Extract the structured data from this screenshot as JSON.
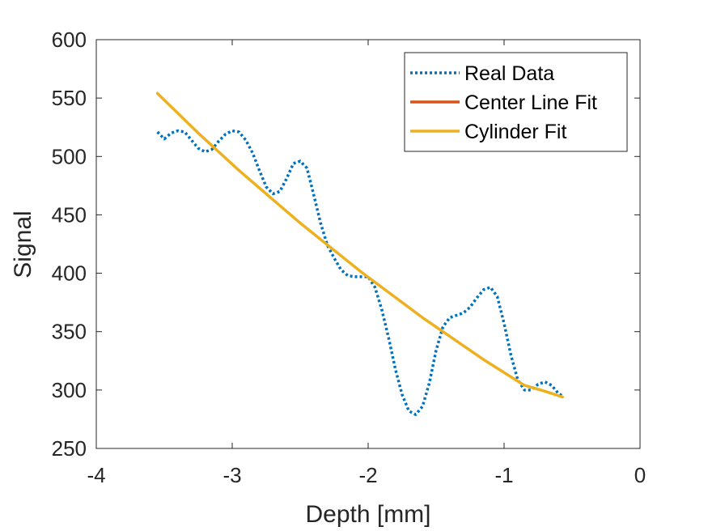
{
  "chart_data": {
    "type": "line",
    "title": "",
    "xlabel": "Depth [mm]",
    "ylabel": "Signal",
    "xlim": [
      -4,
      0
    ],
    "ylim": [
      250,
      600
    ],
    "xticks": [
      -4,
      -3,
      -2,
      -1,
      0
    ],
    "xtick_labels": [
      "-4",
      "-3",
      "-2",
      "-1",
      "0"
    ],
    "yticks": [
      250,
      300,
      350,
      400,
      450,
      500,
      550,
      600
    ],
    "ytick_labels": [
      "250",
      "300",
      "350",
      "400",
      "450",
      "500",
      "550",
      "600"
    ],
    "grid": false,
    "legend_position": "top-right",
    "series": [
      {
        "name": "Real Data",
        "color": "#0072BD",
        "style": "dotted",
        "points": [
          [
            -3.55,
            521
          ],
          [
            -3.5,
            515
          ],
          [
            -3.45,
            520
          ],
          [
            -3.4,
            522
          ],
          [
            -3.35,
            521
          ],
          [
            -3.3,
            514
          ],
          [
            -3.25,
            507
          ],
          [
            -3.2,
            504
          ],
          [
            -3.15,
            506
          ],
          [
            -3.1,
            513
          ],
          [
            -3.05,
            519
          ],
          [
            -3.0,
            522
          ],
          [
            -2.95,
            521
          ],
          [
            -2.9,
            514
          ],
          [
            -2.85,
            503
          ],
          [
            -2.8,
            488
          ],
          [
            -2.75,
            474
          ],
          [
            -2.7,
            468
          ],
          [
            -2.65,
            470
          ],
          [
            -2.6,
            481
          ],
          [
            -2.55,
            494
          ],
          [
            -2.5,
            496
          ],
          [
            -2.45,
            490
          ],
          [
            -2.4,
            467
          ],
          [
            -2.35,
            443
          ],
          [
            -2.3,
            424
          ],
          [
            -2.25,
            413
          ],
          [
            -2.2,
            403
          ],
          [
            -2.15,
            398
          ],
          [
            -2.1,
            397
          ],
          [
            -2.05,
            397
          ],
          [
            -2.0,
            397
          ],
          [
            -1.95,
            388
          ],
          [
            -1.9,
            369
          ],
          [
            -1.85,
            345
          ],
          [
            -1.8,
            318
          ],
          [
            -1.75,
            296
          ],
          [
            -1.7,
            282
          ],
          [
            -1.65,
            279
          ],
          [
            -1.6,
            286
          ],
          [
            -1.55,
            306
          ],
          [
            -1.5,
            334
          ],
          [
            -1.45,
            354
          ],
          [
            -1.4,
            362
          ],
          [
            -1.35,
            364
          ],
          [
            -1.3,
            366
          ],
          [
            -1.25,
            371
          ],
          [
            -1.2,
            379
          ],
          [
            -1.15,
            386
          ],
          [
            -1.1,
            388
          ],
          [
            -1.05,
            380
          ],
          [
            -1.0,
            357
          ],
          [
            -0.95,
            330
          ],
          [
            -0.9,
            309
          ],
          [
            -0.85,
            300
          ],
          [
            -0.8,
            300
          ],
          [
            -0.75,
            305
          ],
          [
            -0.7,
            307
          ],
          [
            -0.65,
            304
          ],
          [
            -0.6,
            297
          ],
          [
            -0.57,
            295
          ]
        ]
      },
      {
        "name": "Center Line Fit",
        "color": "#D95319",
        "style": "solid",
        "points": []
      },
      {
        "name": "Cylinder Fit",
        "color": "#EDB120",
        "style": "solid",
        "points": [
          [
            -3.55,
            554
          ],
          [
            -3.4,
            537
          ],
          [
            -3.25,
            520
          ],
          [
            -3.1,
            504
          ],
          [
            -2.95,
            488
          ],
          [
            -2.8,
            473
          ],
          [
            -2.65,
            458
          ],
          [
            -2.5,
            443
          ],
          [
            -2.35,
            429
          ],
          [
            -2.2,
            415
          ],
          [
            -2.05,
            401
          ],
          [
            -1.9,
            388
          ],
          [
            -1.75,
            375
          ],
          [
            -1.6,
            362
          ],
          [
            -1.45,
            350
          ],
          [
            -1.3,
            338
          ],
          [
            -1.15,
            326
          ],
          [
            -1.0,
            315
          ],
          [
            -0.85,
            304
          ],
          [
            -0.7,
            299
          ],
          [
            -0.57,
            294
          ]
        ]
      }
    ]
  }
}
